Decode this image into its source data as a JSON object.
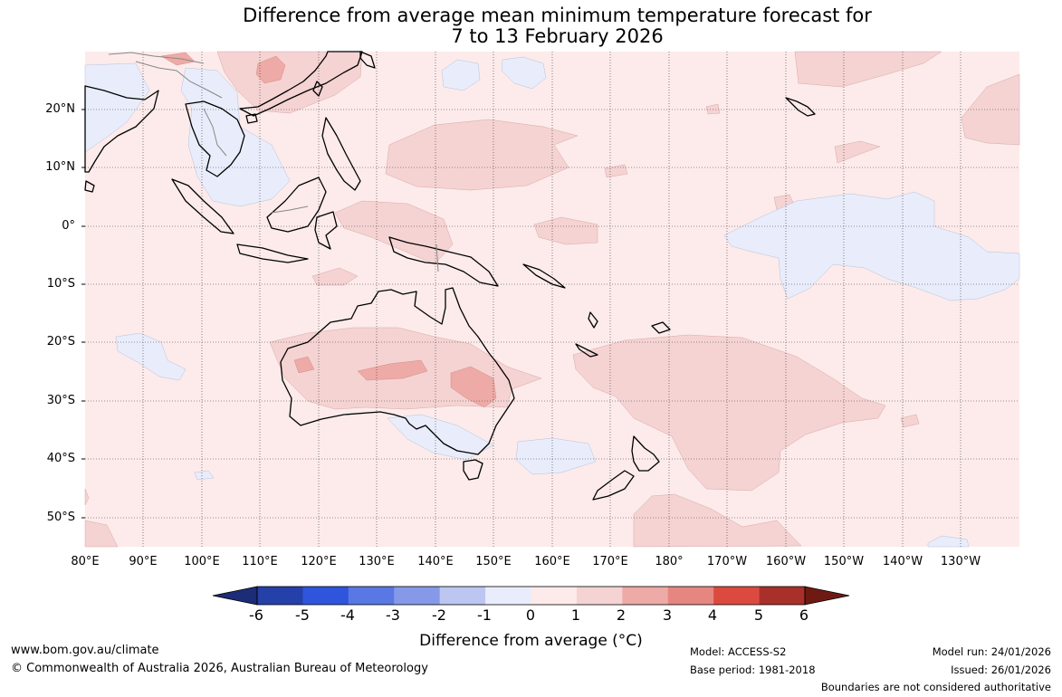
{
  "title_line1": "Difference from average mean minimum temperature forecast for",
  "title_line2": "7 to 13 February 2026",
  "lat_labels": [
    "20°N",
    "10°N",
    "0°",
    "10°S",
    "20°S",
    "30°S",
    "40°S",
    "50°S"
  ],
  "lon_labels": [
    "80°E",
    "90°E",
    "100°E",
    "110°E",
    "120°E",
    "130°E",
    "140°E",
    "150°E",
    "160°E",
    "170°E",
    "180°",
    "170°W",
    "160°W",
    "150°W",
    "140°W",
    "130°W"
  ],
  "colorbar": {
    "labels": [
      "-6",
      "-5",
      "-4",
      "-3",
      "-2",
      "-1",
      "0",
      "1",
      "2",
      "3",
      "4",
      "5",
      "6"
    ],
    "colors": {
      "below_min": "#1c2c77",
      "bins": [
        "#2540a8",
        "#2f55dc",
        "#5a78e3",
        "#8699e9",
        "#bcc6f1",
        "#e9edfb",
        "#fcebea",
        "#f5d3d3",
        "#eeaaa6",
        "#e58680",
        "#dc4a3f",
        "#a9302a"
      ],
      "above_max": "#6e1a13"
    },
    "title": "Difference from average (°C)"
  },
  "footer": {
    "website": "www.bom.gov.au/climate",
    "copyright": "© Commonwealth of Australia 2026, Australian Bureau of Meteorology",
    "model": "Model: ACCESS-S2",
    "base_period": "Base period: 1981-2018",
    "model_run": "Model run: 24/01/2026",
    "issued": "Issued: 26/01/2026",
    "disclaimer": "Boundaries are not considered authoritative"
  }
}
